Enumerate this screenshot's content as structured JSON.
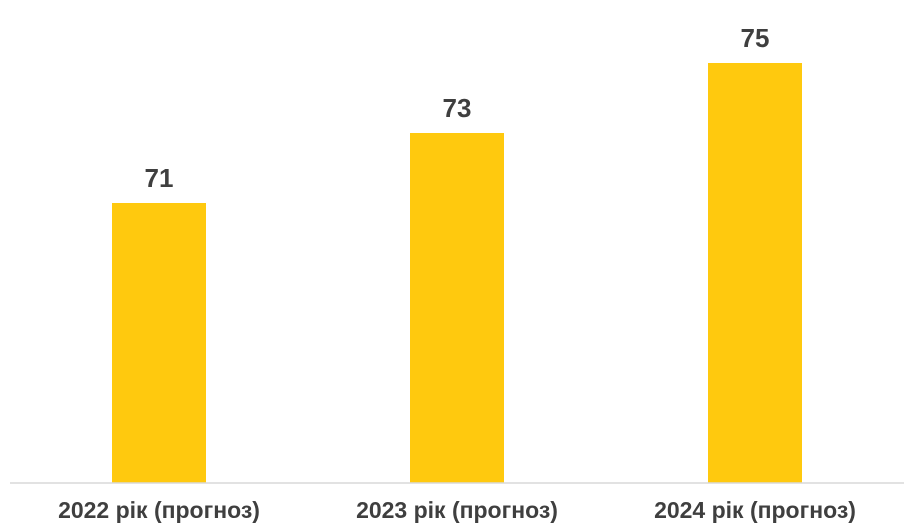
{
  "chart_data": {
    "type": "bar",
    "categories": [
      "2022 рік (прогноз)",
      "2023 рік (прогноз)",
      "2024 рік (прогноз)"
    ],
    "values": [
      71,
      73,
      75
    ],
    "data_labels": [
      "71",
      "73",
      "75"
    ],
    "title": "",
    "xlabel": "",
    "ylabel": "",
    "ylim": [
      63,
      76
    ],
    "grid": false,
    "legend": "none",
    "bar_color": "#FFC90E",
    "label_color": "#3F3F3F",
    "axis_color": "#D9D9D9"
  }
}
